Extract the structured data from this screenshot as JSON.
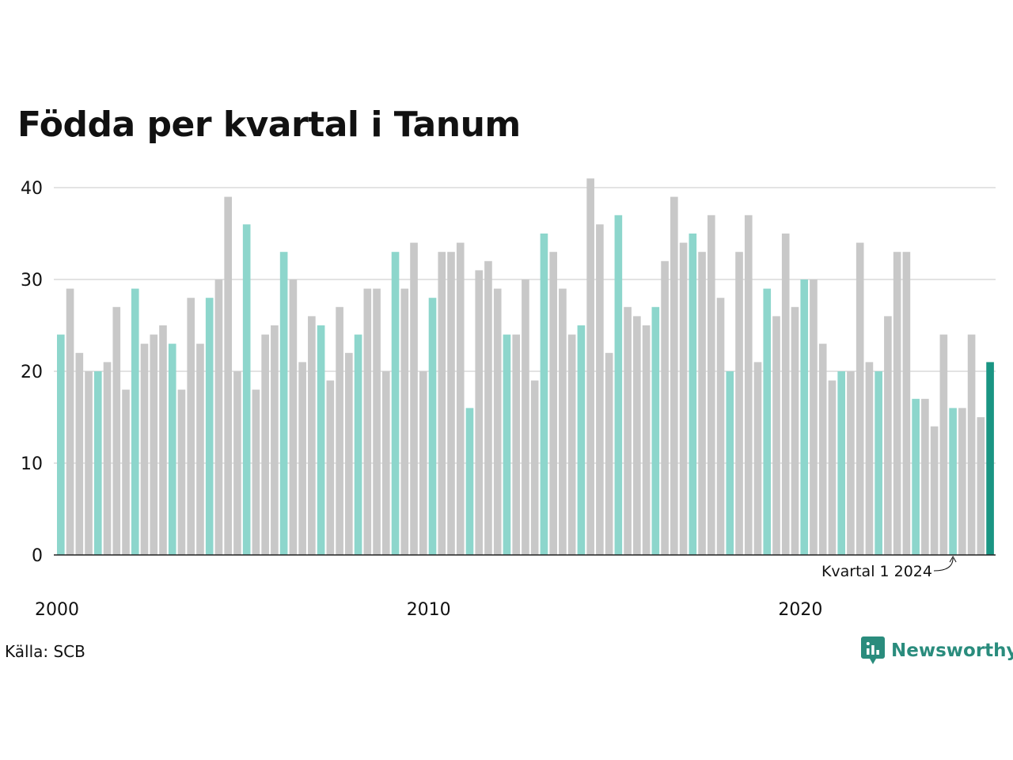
{
  "title": "Födda per kvartal i Tanum",
  "source": "Källa: SCB",
  "brand": {
    "name": "Newsworthy",
    "icon": "newsworthy-logo-icon"
  },
  "colors": {
    "q1": "#8dd6cc",
    "other": "#c8c8c8",
    "latest": "#1a9583",
    "grid": "#e3e3e3",
    "axis": "#222222"
  },
  "chart_data": {
    "type": "bar",
    "title": "Födda per kvartal i Tanum",
    "xlabel": "",
    "ylabel": "",
    "ylim": [
      0,
      42
    ],
    "yticks": [
      0,
      10,
      20,
      30,
      40
    ],
    "grid": true,
    "start": {
      "year": 2000,
      "quarter": 1
    },
    "xticks": [
      {
        "label": "2000",
        "index": 0
      },
      {
        "label": "2010",
        "index": 40
      },
      {
        "label": "2020",
        "index": 80
      }
    ],
    "highlight": "quarter 1",
    "annotation": {
      "text": "Kvartal 1 2024",
      "index": 96
    },
    "values": [
      24,
      29,
      22,
      20,
      20,
      21,
      27,
      18,
      29,
      23,
      24,
      25,
      23,
      18,
      28,
      23,
      28,
      30,
      39,
      20,
      36,
      18,
      24,
      25,
      33,
      30,
      21,
      26,
      25,
      19,
      27,
      22,
      24,
      29,
      29,
      20,
      33,
      29,
      34,
      20,
      28,
      33,
      33,
      34,
      16,
      31,
      32,
      29,
      24,
      24,
      30,
      19,
      35,
      33,
      29,
      24,
      25,
      41,
      36,
      22,
      37,
      27,
      26,
      25,
      27,
      32,
      39,
      34,
      35,
      33,
      37,
      28,
      20,
      33,
      37,
      21,
      29,
      26,
      35,
      27,
      30,
      30,
      23,
      19,
      20,
      20,
      34,
      21,
      20,
      26,
      33,
      33,
      17,
      17,
      14,
      24,
      16,
      16,
      24,
      15,
      21
    ]
  }
}
